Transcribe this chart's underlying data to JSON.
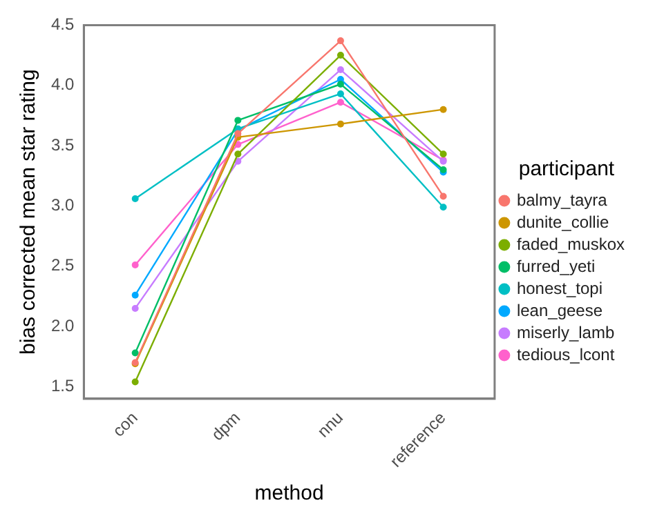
{
  "chart_data": {
    "type": "line",
    "xlabel": "method",
    "ylabel": "bias corrected mean star rating",
    "legend_title": "participant",
    "legend": "right",
    "marker": "circle",
    "grid": false,
    "categories": [
      "con",
      "dpm",
      "nnu",
      "reference"
    ],
    "ylim": [
      1.4,
      4.5
    ],
    "yticks": [
      1.5,
      {
        "value": 2,
        "label": "2.0"
      },
      2.5,
      {
        "value": 3,
        "label": "3.0"
      },
      3.5,
      {
        "value": 4,
        "label": "4.0"
      },
      4.5
    ],
    "series": [
      {
        "name": "balmy_tayra",
        "color": "#f8766d",
        "values": [
          1.7,
          3.6,
          4.37,
          3.08
        ]
      },
      {
        "name": "dunite_collie",
        "color": "#cd9600",
        "values": [
          1.69,
          3.57,
          3.68,
          3.8
        ]
      },
      {
        "name": "faded_muskox",
        "color": "#7cae00",
        "values": [
          1.54,
          3.43,
          4.25,
          3.43
        ]
      },
      {
        "name": "furred_yeti",
        "color": "#00be67",
        "values": [
          1.78,
          3.71,
          4.01,
          3.3
        ]
      },
      {
        "name": "honest_topi",
        "color": "#00bfc4",
        "values": [
          3.06,
          3.64,
          3.93,
          2.99
        ]
      },
      {
        "name": "lean_geese",
        "color": "#00a9ff",
        "values": [
          2.26,
          3.63,
          4.05,
          3.28
        ]
      },
      {
        "name": "miserly_lamb",
        "color": "#c77cff",
        "values": [
          2.15,
          3.37,
          4.13,
          3.37
        ]
      },
      {
        "name": "tedious_lcont",
        "color": "#ff61cc",
        "values": [
          2.51,
          3.51,
          3.86,
          3.38
        ]
      }
    ]
  }
}
